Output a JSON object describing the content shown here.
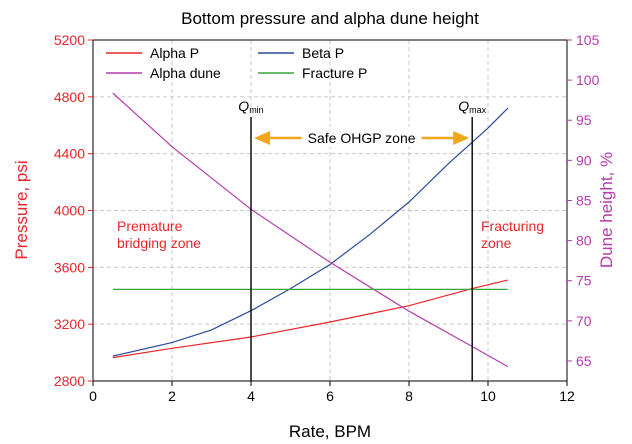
{
  "chart_data": {
    "type": "line",
    "title": "Bottom pressure and alpha dune height",
    "xlabel": "Rate, BPM",
    "ylabel_left": "Pressure, psi",
    "ylabel_right": "Dune height, %",
    "xlim": [
      0,
      12
    ],
    "ylim_left": [
      2800,
      5200
    ],
    "ylim_right": [
      62.5,
      105
    ],
    "x_ticks": [
      0,
      2,
      4,
      6,
      8,
      10,
      12
    ],
    "y_ticks_left": [
      2800,
      3200,
      3600,
      4000,
      4400,
      4800,
      5200
    ],
    "y_ticks_right": [
      65,
      70,
      75,
      80,
      85,
      90,
      95,
      100,
      105
    ],
    "grid": true,
    "legend_position": "top-left",
    "colors": {
      "alpha_p": "#e8262b",
      "beta_p": "#2b4a9c",
      "alpha_dune": "#b43cac",
      "fracture_p": "#3aa63a",
      "arrow": "#f0a818",
      "left_axis": "#e8262b",
      "right_axis": "#b43cac"
    },
    "series": [
      {
        "name": "Alpha P",
        "axis": "left",
        "color": "#e8262b",
        "x": [
          0.5,
          2,
          4,
          6,
          8,
          9.6,
          10.5
        ],
        "values": [
          2965,
          3030,
          3110,
          3215,
          3330,
          3450,
          3510
        ]
      },
      {
        "name": "Beta P",
        "axis": "left",
        "color": "#2b4a9c",
        "x": [
          0.5,
          2,
          3,
          4,
          5,
          6,
          7,
          8,
          9,
          10,
          10.5
        ],
        "values": [
          2975,
          3070,
          3160,
          3295,
          3450,
          3620,
          3830,
          4060,
          4330,
          4580,
          4720
        ]
      },
      {
        "name": "Alpha dune",
        "axis": "right",
        "color": "#b43cac",
        "x": [
          0.5,
          2,
          4,
          6,
          8,
          9.6,
          10.5
        ],
        "values": [
          98.4,
          91.7,
          83.9,
          77.3,
          71.2,
          66.8,
          64.3
        ]
      },
      {
        "name": "Fracture P",
        "axis": "left",
        "color": "#3aa63a",
        "x": [
          0.5,
          10.5
        ],
        "values": [
          3445,
          3445
        ]
      }
    ],
    "vlines": [
      {
        "x": 4.0,
        "label_main": "Q",
        "label_sub": "min"
      },
      {
        "x": 9.6,
        "label_main": "Q",
        "label_sub": "max"
      }
    ],
    "annotations": {
      "safe_zone": "Safe OHGP zone",
      "premature_line1": "Premature",
      "premature_line2": "bridging zone",
      "fracturing_line1": "Fracturing",
      "fracturing_line2": "zone"
    }
  }
}
